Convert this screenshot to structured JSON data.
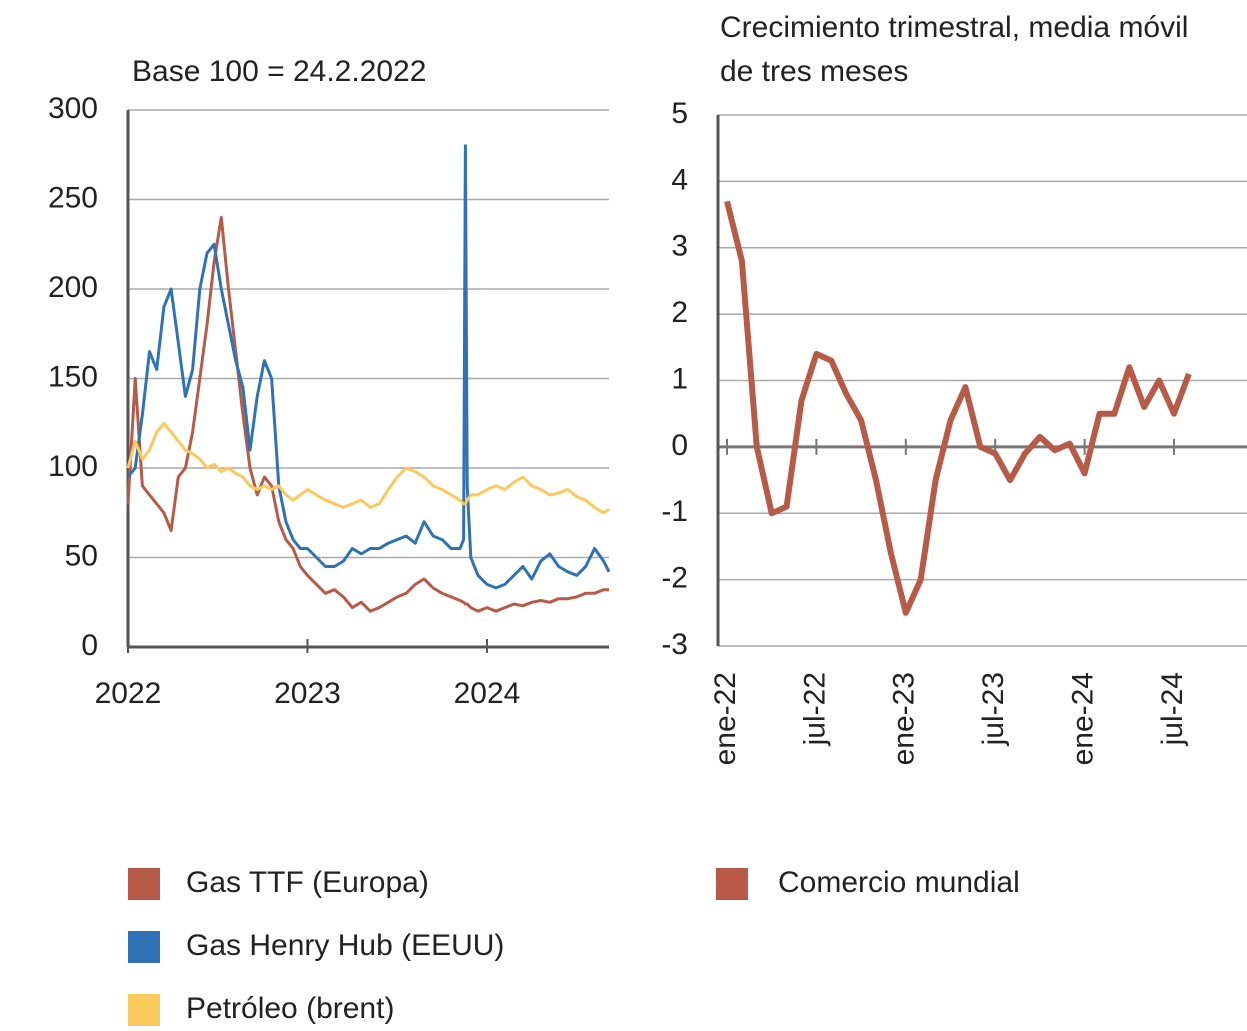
{
  "chart_data": [
    {
      "type": "line",
      "title": "Base 100 = 24.2.2022",
      "x": [
        2022.0,
        2022.04,
        2022.08,
        2022.12,
        2022.16,
        2022.2,
        2022.24,
        2022.28,
        2022.32,
        2022.36,
        2022.4,
        2022.44,
        2022.48,
        2022.52,
        2022.56,
        2022.6,
        2022.64,
        2022.68,
        2022.72,
        2022.76,
        2022.8,
        2022.84,
        2022.88,
        2022.92,
        2022.96,
        2023.0,
        2023.05,
        2023.1,
        2023.15,
        2023.2,
        2023.25,
        2023.3,
        2023.35,
        2023.4,
        2023.45,
        2023.5,
        2023.55,
        2023.6,
        2023.65,
        2023.7,
        2023.75,
        2023.8,
        2023.85,
        2023.87,
        2023.88,
        2023.89,
        2023.91,
        2023.95,
        2024.0,
        2024.05,
        2024.1,
        2024.15,
        2024.2,
        2024.25,
        2024.3,
        2024.35,
        2024.4,
        2024.45,
        2024.5,
        2024.55,
        2024.6,
        2024.65,
        2024.68
      ],
      "series": [
        {
          "name": "Gas TTF (Europa)",
          "color": "#b85a48",
          "values": [
            80,
            150,
            90,
            85,
            80,
            75,
            65,
            95,
            100,
            120,
            150,
            180,
            215,
            240,
            200,
            165,
            130,
            100,
            85,
            95,
            90,
            70,
            60,
            55,
            45,
            40,
            35,
            30,
            32,
            28,
            22,
            25,
            20,
            22,
            25,
            28,
            30,
            35,
            38,
            33,
            30,
            28,
            26,
            25,
            24,
            24,
            22,
            20,
            22,
            20,
            22,
            24,
            23,
            25,
            26,
            25,
            27,
            27,
            28,
            30,
            30,
            32,
            32
          ]
        },
        {
          "name": "Gas Henry Hub (EEUU)",
          "color": "#2f72b8",
          "values": [
            95,
            100,
            130,
            165,
            155,
            190,
            200,
            170,
            140,
            155,
            200,
            220,
            225,
            200,
            180,
            160,
            145,
            110,
            140,
            160,
            150,
            90,
            70,
            60,
            55,
            55,
            50,
            45,
            45,
            48,
            55,
            52,
            55,
            55,
            58,
            60,
            62,
            58,
            70,
            62,
            60,
            55,
            55,
            60,
            280,
            90,
            50,
            40,
            35,
            33,
            35,
            40,
            45,
            38,
            48,
            52,
            45,
            42,
            40,
            45,
            55,
            48,
            42
          ]
        },
        {
          "name": "Petróleo (brent)",
          "color": "#fbc95c",
          "values": [
            100,
            115,
            105,
            110,
            120,
            125,
            120,
            115,
            110,
            108,
            105,
            100,
            102,
            98,
            100,
            97,
            95,
            90,
            88,
            90,
            88,
            90,
            85,
            82,
            85,
            88,
            85,
            82,
            80,
            78,
            80,
            82,
            78,
            80,
            88,
            95,
            100,
            98,
            95,
            90,
            88,
            85,
            82,
            80,
            80,
            82,
            85,
            85,
            88,
            90,
            88,
            92,
            95,
            90,
            88,
            85,
            86,
            88,
            84,
            82,
            78,
            75,
            77
          ]
        }
      ],
      "xlim": [
        2022,
        2024.68
      ],
      "xticks": [
        2022,
        2023,
        2024
      ],
      "ylim": [
        0,
        300
      ],
      "yticks": [
        0,
        50,
        100,
        150,
        200,
        250,
        300
      ],
      "grid": true
    },
    {
      "type": "line",
      "title": "Crecimiento trimestral, media móvil de tres meses",
      "categories": [
        "ene-22",
        null,
        null,
        null,
        null,
        null,
        "jul-22",
        null,
        null,
        null,
        null,
        null,
        "ene-23",
        null,
        null,
        null,
        null,
        null,
        "jul-23",
        null,
        null,
        null,
        null,
        null,
        "ene-24",
        null,
        null,
        null,
        null,
        null,
        "jul-24",
        null
      ],
      "series": [
        {
          "name": "Comercio mundial",
          "color": "#b85a48",
          "values": [
            3.7,
            2.8,
            0.0,
            -1.0,
            -0.9,
            0.7,
            1.4,
            1.3,
            0.8,
            0.4,
            -0.5,
            -1.6,
            -2.5,
            -2.0,
            -0.5,
            0.4,
            0.9,
            0.0,
            -0.1,
            -0.5,
            -0.1,
            0.15,
            -0.05,
            0.05,
            -0.4,
            0.5,
            0.5,
            1.2,
            0.6,
            1.0,
            0.5,
            1.1
          ]
        }
      ],
      "ylim": [
        -3,
        5
      ],
      "yticks": [
        -3,
        -2,
        -1,
        0,
        1,
        2,
        3,
        4,
        5
      ],
      "grid": true
    }
  ]
}
